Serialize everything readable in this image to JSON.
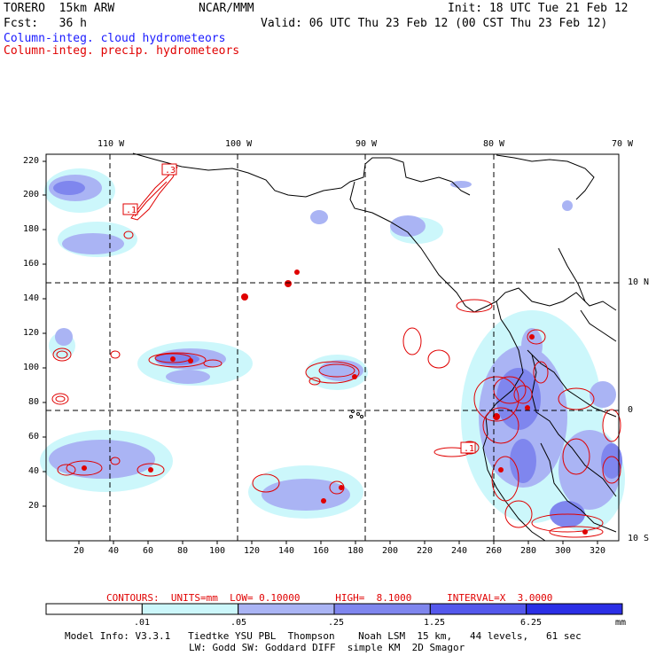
{
  "header": {
    "model": "TORERO  15km ARW",
    "org": "NCAR/MMM",
    "init": "Init: 18 UTC Tue 21 Feb 12",
    "fcst": "Fcst:   36 h",
    "valid": "Valid: 06 UTC Thu 23 Feb 12 (00 CST Thu 23 Feb 12)",
    "field_blue": "Column-integ. cloud hydrometeors",
    "field_red": "Column-integ. precip. hydrometeors"
  },
  "map": {
    "lon_labels": [
      "110 W",
      "100 W",
      "90 W",
      "80 W",
      "70 W"
    ],
    "lat_labels": [
      "10 N",
      "0",
      "10 S"
    ],
    "y_ticks": [
      "220",
      "200",
      "180",
      "160",
      "140",
      "120",
      "100",
      "80",
      "60",
      "40",
      "20"
    ],
    "x_ticks": [
      "20",
      "40",
      "60",
      "80",
      "100",
      "120",
      "140",
      "160",
      "180",
      "200",
      "220",
      "240",
      "260",
      "280",
      "300",
      "320"
    ],
    "contour_labels": [
      ".3",
      ".1",
      ".1"
    ],
    "shade_colors": [
      "#ccf7fb",
      "#aab4f4",
      "#7f86ee",
      "#5458ec",
      "#2b2fe6"
    ]
  },
  "contours_line": {
    "units": "CONTOURS:  UNITS=mm  LOW= 0.10000      HIGH=  8.1000      INTERVAL=X  3.0000"
  },
  "colorbar": {
    "labels": [
      ".01",
      ".05",
      ".25",
      "1.25",
      "6.25"
    ],
    "units": "mm",
    "colors": [
      "#ffffff",
      "#ccf7fb",
      "#aab4f4",
      "#7f86ee",
      "#5458ec",
      "#2b2fe6"
    ]
  },
  "footer": {
    "line1": "Model Info: V3.3.1   Tiedtke YSU PBL  Thompson    Noah LSM  15 km,   44 levels,   61 sec",
    "line2": "LW: Godd SW: Goddard DIFF  simple KM  2D Smagor"
  }
}
